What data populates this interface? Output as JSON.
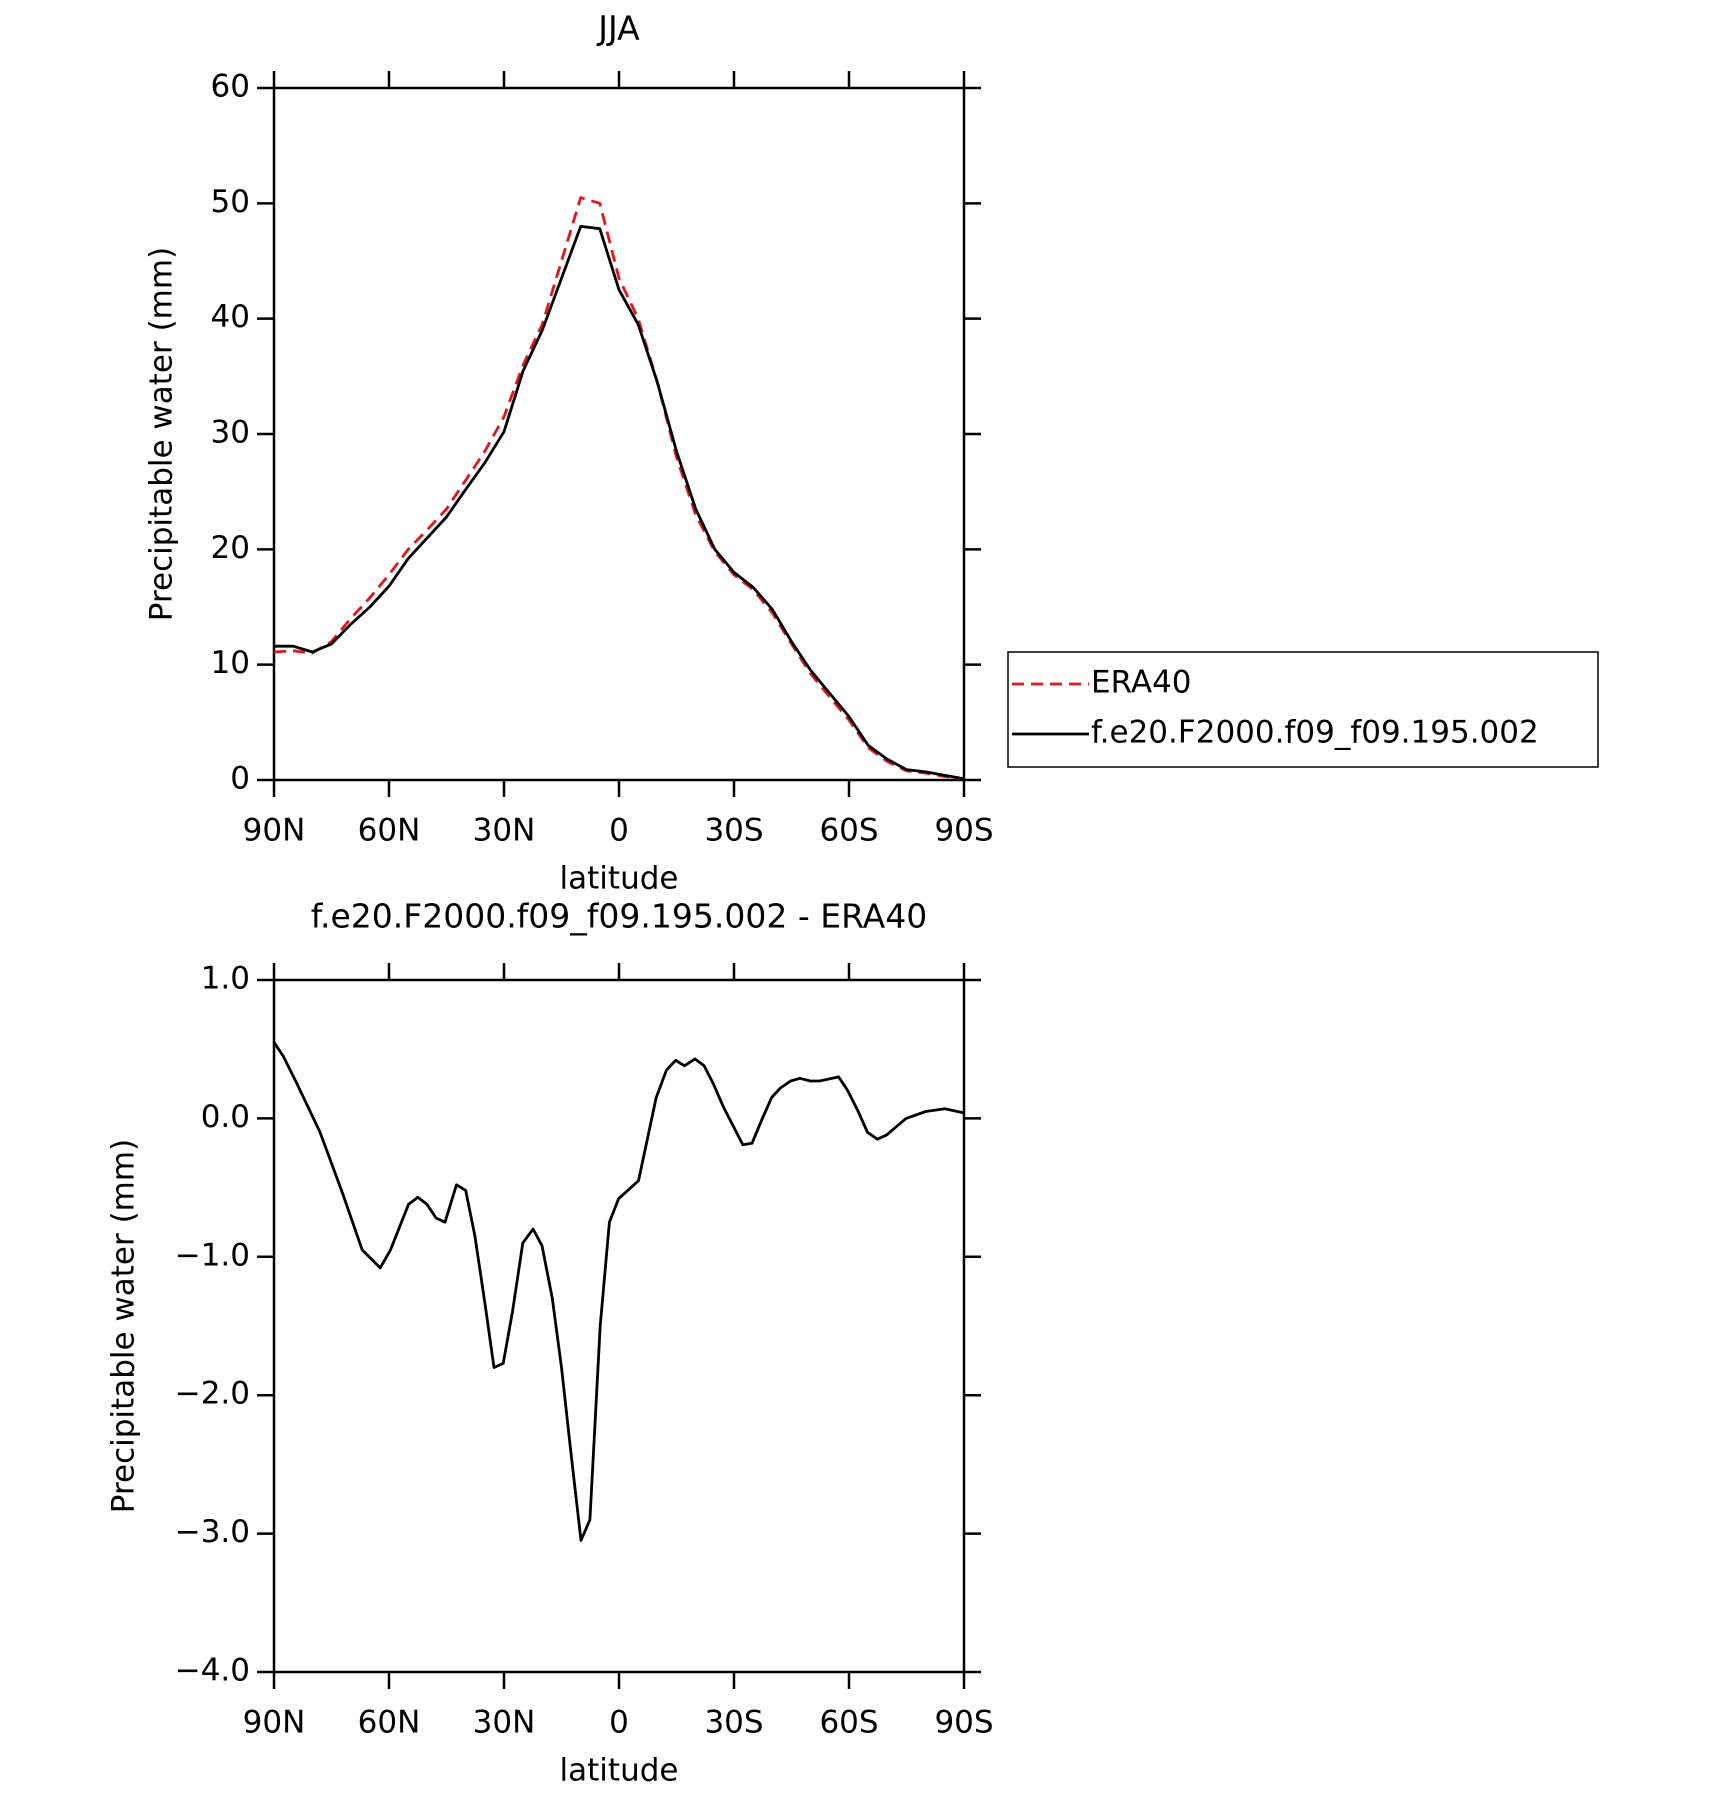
{
  "chart_data": [
    {
      "type": "line",
      "title": "JJA",
      "x_label": "latitude",
      "y_label": "Precipitable water (mm)",
      "x": [
        90,
        85,
        80,
        75,
        70,
        65,
        60,
        55,
        50,
        45,
        40,
        35,
        30,
        25,
        20,
        15,
        10,
        5,
        0,
        -5,
        -10,
        -15,
        -20,
        -25,
        -30,
        -35,
        -40,
        -45,
        -50,
        -55,
        -60,
        -65,
        -70,
        -75,
        -80,
        -85,
        -90
      ],
      "series": [
        {
          "name": "ERA40",
          "color": "#e8131b",
          "dash": true,
          "values": [
            11.1,
            11.2,
            11.0,
            12.0,
            14.0,
            15.8,
            17.8,
            20.0,
            21.7,
            23.5,
            26.0,
            28.5,
            31.5,
            36.0,
            39.5,
            45.0,
            50.5,
            50.0,
            43.5,
            40.0,
            34.5,
            28.0,
            23.0,
            19.8,
            17.8,
            16.5,
            14.5,
            11.8,
            9.2,
            7.2,
            5.2,
            2.8,
            1.6,
            0.8,
            0.6,
            0.3,
            0.1
          ]
        },
        {
          "name": "f.e20.F2000.f09_f09.195.002",
          "color": "#000000",
          "dash": false,
          "values": [
            11.6,
            11.6,
            11.1,
            11.8,
            13.5,
            15.0,
            16.8,
            19.2,
            21.0,
            22.8,
            25.2,
            27.5,
            30.2,
            35.5,
            39.0,
            43.5,
            48.0,
            47.8,
            42.5,
            39.5,
            34.5,
            28.5,
            23.5,
            20.0,
            18.0,
            16.7,
            14.8,
            12.0,
            9.5,
            7.5,
            5.5,
            3.0,
            1.8,
            0.9,
            0.7,
            0.4,
            0.1
          ]
        }
      ],
      "xlim": [
        90,
        -90
      ],
      "xticks": [
        {
          "value": 90,
          "label": "90N"
        },
        {
          "value": 60,
          "label": "60N"
        },
        {
          "value": 30,
          "label": "30N"
        },
        0,
        {
          "value": -30,
          "label": "30S"
        },
        {
          "value": -60,
          "label": "60S"
        },
        {
          "value": -90,
          "label": "90S"
        }
      ],
      "ylim": [
        0,
        60
      ],
      "yticks": [
        0,
        10,
        20,
        30,
        40,
        50,
        60
      ],
      "legend": "right"
    },
    {
      "type": "line",
      "title": "f.e20.F2000.f09_f09.195.002 - ERA40",
      "x_label": "latitude",
      "y_label": "Precipitable water (mm)",
      "x": [
        90,
        87.6,
        84,
        78,
        72,
        67,
        62.3,
        59.6,
        54.9,
        52.5,
        50.1,
        47.7,
        45.4,
        42.4,
        40,
        37.6,
        34.9,
        32.6,
        30.2,
        27.8,
        25.1,
        22.4,
        20.1,
        17.4,
        15,
        12.6,
        9.9,
        7.6,
        4.9,
        2.5,
        0.1,
        -5.1,
        -9.7,
        -12.4,
        -14.8,
        -17.1,
        -19.8,
        -22.2,
        -24.6,
        -27.3,
        -32.3,
        -34.7,
        -37.1,
        -39.8,
        -42.1,
        -44.8,
        -47.2,
        -49.9,
        -52.3,
        -57.3,
        -59.7,
        -62.4,
        -64.8,
        -67.4,
        -69.8,
        -74.9,
        -80,
        -85,
        -90
      ],
      "series": [
        {
          "color": "#000000",
          "dash": false,
          "values": [
            0.55,
            0.45,
            0.25,
            -0.1,
            -0.55,
            -0.95,
            -1.08,
            -0.95,
            -0.62,
            -0.57,
            -0.62,
            -0.72,
            -0.75,
            -0.48,
            -0.52,
            -0.85,
            -1.35,
            -1.8,
            -1.77,
            -1.4,
            -0.9,
            -0.8,
            -0.92,
            -1.3,
            -1.8,
            -2.4,
            -3.05,
            -2.9,
            -1.5,
            -0.75,
            -0.58,
            -0.45,
            0.15,
            0.35,
            0.42,
            0.38,
            0.43,
            0.38,
            0.25,
            0.08,
            -0.19,
            -0.18,
            -0.02,
            0.15,
            0.22,
            0.27,
            0.29,
            0.27,
            0.27,
            0.3,
            0.2,
            0.05,
            -0.1,
            -0.15,
            -0.12,
            0.0,
            0.05,
            0.07,
            0.04
          ]
        }
      ],
      "xlim": [
        90,
        -90
      ],
      "xticks": [
        {
          "value": 90,
          "label": "90N"
        },
        {
          "value": 60,
          "label": "60N"
        },
        {
          "value": 30,
          "label": "30N"
        },
        0,
        {
          "value": -30,
          "label": "30S"
        },
        {
          "value": -60,
          "label": "60S"
        },
        {
          "value": -90,
          "label": "90S"
        }
      ],
      "ylim": [
        -4,
        1
      ],
      "yticks": [
        {
          "value": -4,
          "label": "−4.0"
        },
        {
          "value": -3,
          "label": "−3.0"
        },
        {
          "value": -2,
          "label": "−2.0"
        },
        {
          "value": -1,
          "label": "−1.0"
        },
        {
          "value": 0,
          "label": "0.0"
        },
        {
          "value": 1,
          "label": "1.0"
        }
      ]
    }
  ]
}
